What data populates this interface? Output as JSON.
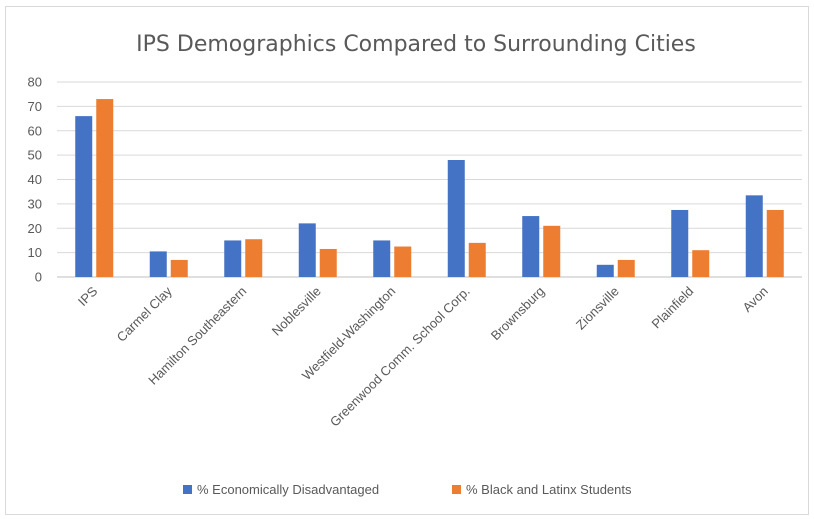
{
  "chart_data": {
    "type": "bar",
    "title": "IPS Demographics Compared to Surrounding Cities",
    "xlabel": "",
    "ylabel": "",
    "ylim": [
      0,
      80
    ],
    "yticks": [
      0,
      10,
      20,
      30,
      40,
      50,
      60,
      70,
      80
    ],
    "grid": true,
    "legend_position": "bottom",
    "categories": [
      "IPS",
      "Carmel Clay",
      "Hamilton Southeastern",
      "Noblesville",
      "Westfield-Washington",
      "Greenwood Comm. School Corp.",
      "Brownsburg",
      "Zionsville",
      "Plainfield",
      "Avon"
    ],
    "series": [
      {
        "name": "% Economically Disadvantaged",
        "color": "#4472c4",
        "values": [
          66,
          10.5,
          15,
          22,
          15,
          48,
          25,
          5,
          27.5,
          33.5
        ]
      },
      {
        "name": "% Black and Latinx Students",
        "color": "#ed7d31",
        "values": [
          73,
          7,
          15.5,
          11.5,
          12.5,
          14,
          21,
          7,
          11,
          27.5
        ]
      }
    ]
  }
}
